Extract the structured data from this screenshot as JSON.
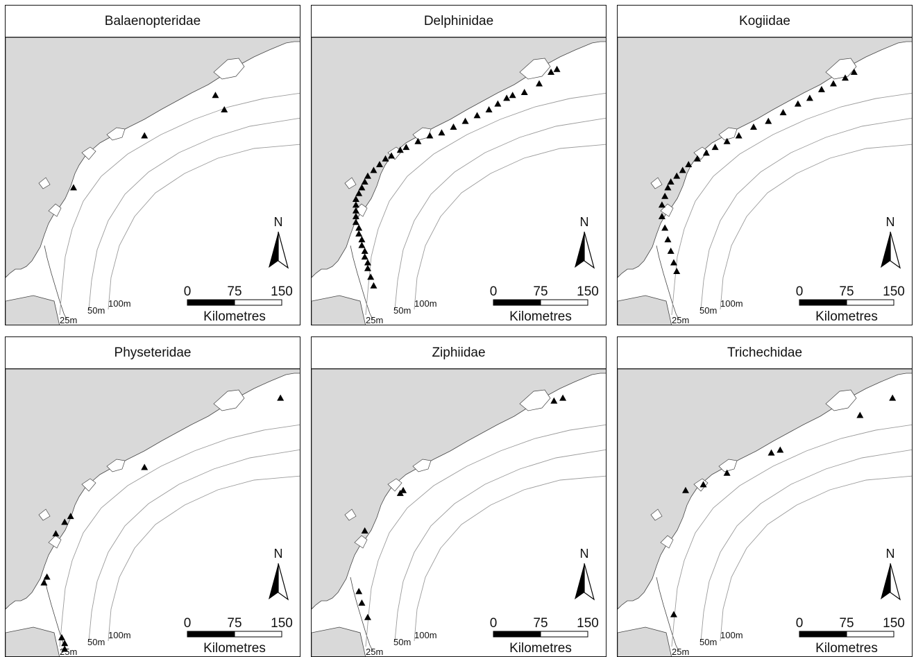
{
  "panels": [
    {
      "title": "Balaenopteridae"
    },
    {
      "title": "Delphinidae"
    },
    {
      "title": "Kogiidae"
    },
    {
      "title": "Physeteridae"
    },
    {
      "title": "Ziphiidae"
    },
    {
      "title": "Trichechidae"
    }
  ],
  "north_label": "N",
  "scale": {
    "ticks": [
      "0",
      "75",
      "150"
    ],
    "unit": "Kilometres"
  },
  "depth_labels": [
    "25m",
    "50m",
    "100m"
  ],
  "colors": {
    "land": "#d9d9d9",
    "water": "#ffffff",
    "marker": "#000000",
    "contour": "#9a9a9a"
  },
  "icons": [
    "sighting-triangle-icon",
    "north-arrow-icon"
  ]
}
